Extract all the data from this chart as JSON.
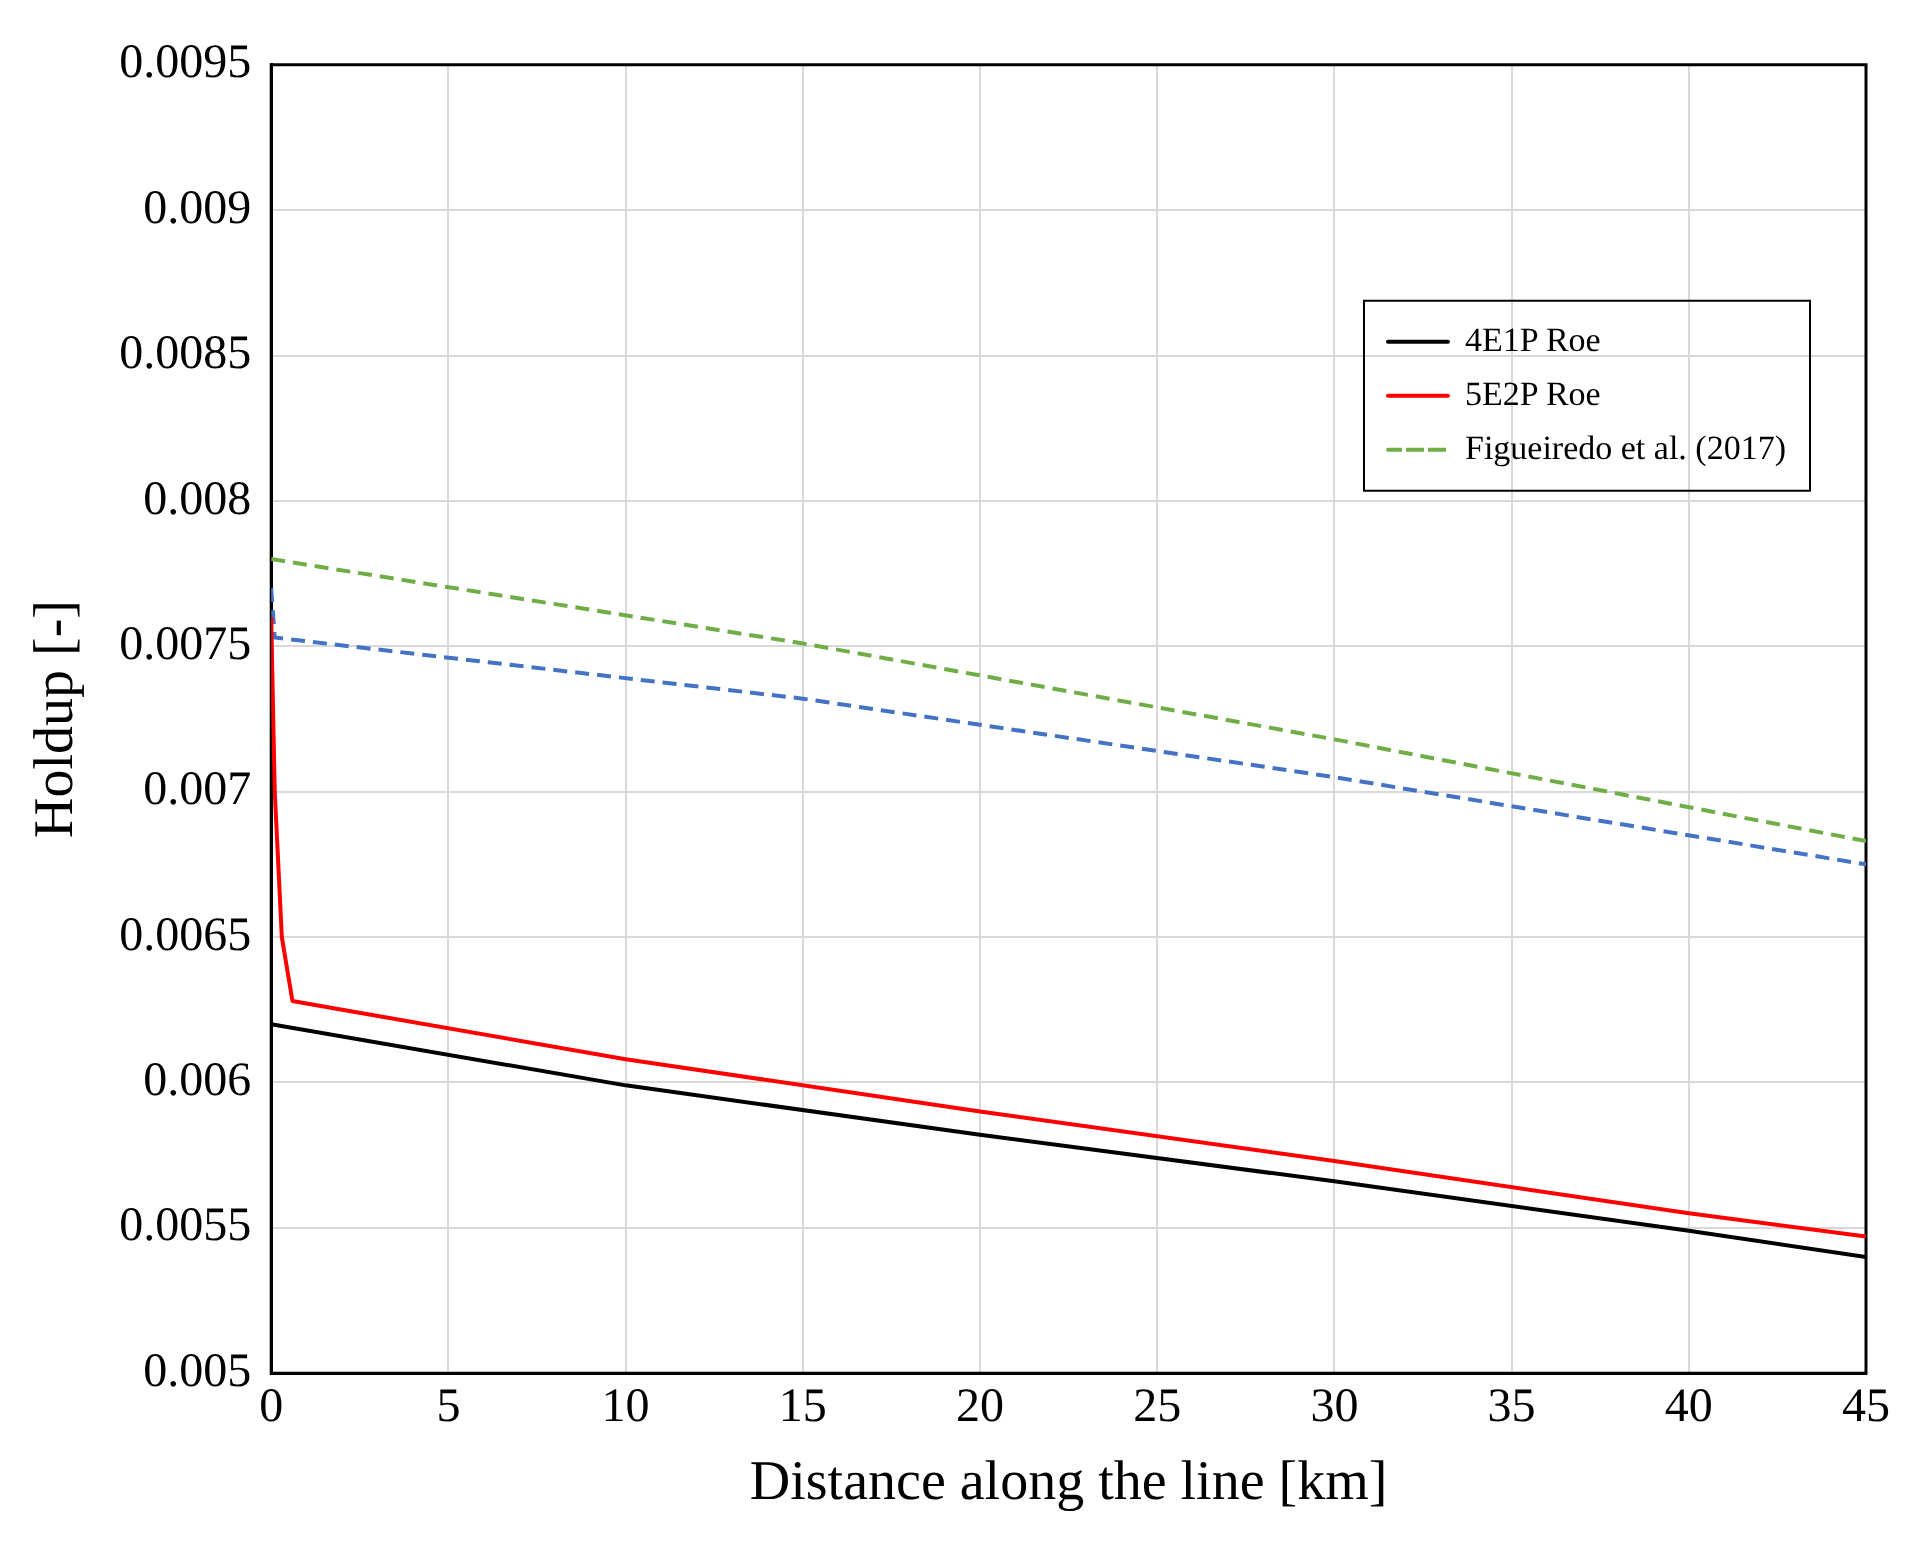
{
  "chart_data": {
    "type": "line",
    "xlabel": "Distance along the line [km]",
    "ylabel": "Holdup [-]",
    "xlim": [
      0,
      45
    ],
    "xticks": [
      0,
      5,
      10,
      15,
      20,
      25,
      30,
      35,
      40,
      45
    ],
    "ylim": [
      0.005,
      0.0095
    ],
    "yticks": [
      0.005,
      0.0055,
      0.006,
      0.0065,
      0.007,
      0.0075,
      0.008,
      0.0085,
      0.009,
      0.0095
    ],
    "grid": true,
    "legend": "top right",
    "marker": "none",
    "series": [
      {
        "name": "4E1P Roe",
        "color": "#000000",
        "line_style": "solid",
        "x": [
          0,
          10,
          20,
          30,
          40,
          45
        ],
        "values": [
          0.0062,
          0.00599,
          0.00582,
          0.00566,
          0.00549,
          0.0054
        ]
      },
      {
        "name": "5E2P Roe",
        "color": "#ff0000",
        "line_style": "solid",
        "x": [
          0,
          0.1,
          0.3,
          0.6,
          2,
          10,
          20,
          30,
          40,
          45
        ],
        "values": [
          0.0076,
          0.007,
          0.0065,
          0.00628,
          0.00625,
          0.00608,
          0.0059,
          0.00573,
          0.00555,
          0.00547
        ]
      },
      {
        "name": "Figueiredo et al. (2017)",
        "color": "#70ad47",
        "line_style": "dashed",
        "x": [
          0,
          15,
          30,
          45
        ],
        "values": [
          0.0078,
          0.00751,
          0.00718,
          0.00683
        ]
      },
      {
        "color": "#4472c4",
        "line_style": "dashed",
        "x": [
          0,
          0.1,
          15,
          30,
          45
        ],
        "values": [
          0.0077,
          0.00753,
          0.00732,
          0.00705,
          0.00675
        ]
      }
    ]
  }
}
